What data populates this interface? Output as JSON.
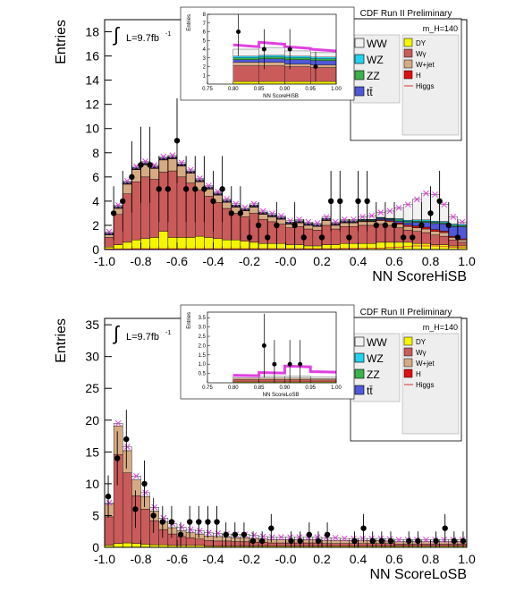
{
  "page": {
    "background": "#ffffff"
  },
  "colors": {
    "WW": "#f2f2f2",
    "WZ": "#22d3ee",
    "ZZ": "#3cb34a",
    "ttbar": "#4f58d6",
    "DY": "#f5f500",
    "Wgamma": "#c95b5b",
    "Wjet": "#d6ab84",
    "H": "#e01010",
    "Higgs": "#d83030",
    "uncertainty": "#e040e0",
    "data": "#000000"
  },
  "chart_data": [
    {
      "type": "bar",
      "title": "CDF Run II Preliminary",
      "mass_label": "m_H=140",
      "lumi": "L=9.7fb",
      "lumi_exp": "-1",
      "integral_symbol": "∫",
      "xlabel": "NN ScoreHiSB",
      "ylabel": "Entries",
      "xlim": [
        -1.0,
        1.0
      ],
      "ylim": [
        0,
        19
      ],
      "x_ticks": [
        "-1.0",
        "-0.8",
        "-0.6",
        "-0.4",
        "-0.2",
        "-0.0",
        "0.2",
        "0.4",
        "0.6",
        "0.8",
        "1.0"
      ],
      "y_ticks": [
        "0",
        "2",
        "4",
        "6",
        "8",
        "10",
        "12",
        "14",
        "16",
        "18"
      ],
      "bins": 40,
      "stack_order": [
        "DY",
        "Wgamma",
        "Wjet",
        "H",
        "ttbar",
        "ZZ",
        "WZ",
        "WW"
      ],
      "stack": {
        "DY": [
          0.2,
          0.4,
          0.6,
          0.8,
          0.9,
          1.0,
          1.5,
          1.0,
          1.0,
          1.0,
          1.1,
          1.0,
          0.9,
          0.8,
          0.8,
          0.7,
          0.6,
          0.5,
          0.5,
          0.5,
          0.4,
          0.4,
          0.3,
          0.3,
          0.4,
          0.4,
          0.5,
          0.5,
          0.5,
          0.5,
          0.6,
          0.6,
          0.6,
          0.6,
          0.5,
          0.5,
          0.4,
          0.4,
          0.3,
          0.3
        ],
        "Wgamma": [
          0.8,
          2.5,
          4.0,
          4.8,
          5.1,
          4.8,
          4.9,
          5.5,
          5.0,
          4.5,
          3.8,
          3.4,
          3.0,
          2.6,
          2.2,
          2.0,
          2.4,
          2.0,
          1.8,
          1.6,
          1.4,
          1.5,
          1.4,
          1.3,
          1.6,
          1.3,
          1.4,
          1.4,
          1.5,
          1.5,
          1.5,
          1.4,
          1.2,
          1.0,
          1.0,
          0.9,
          0.8,
          0.7,
          0.5,
          0.3
        ],
        "Wjet": [
          0.2,
          0.5,
          0.8,
          1.0,
          1.0,
          0.9,
          1.0,
          1.0,
          0.9,
          0.8,
          0.7,
          0.6,
          0.6,
          0.5,
          0.5,
          0.5,
          0.5,
          0.4,
          0.4,
          0.4,
          0.3,
          0.3,
          0.3,
          0.3,
          0.4,
          0.3,
          0.3,
          0.3,
          0.3,
          0.3,
          0.3,
          0.3,
          0.3,
          0.3,
          0.3,
          0.3,
          0.3,
          0.3,
          0.2,
          0.2
        ],
        "H": [
          0.02,
          0.02,
          0.02,
          0.03,
          0.03,
          0.03,
          0.03,
          0.03,
          0.03,
          0.03,
          0.03,
          0.03,
          0.03,
          0.03,
          0.03,
          0.03,
          0.03,
          0.03,
          0.03,
          0.03,
          0.03,
          0.03,
          0.03,
          0.03,
          0.03,
          0.03,
          0.04,
          0.04,
          0.05,
          0.05,
          0.06,
          0.08,
          0.1,
          0.12,
          0.15,
          0.15,
          0.15,
          0.12,
          0.1,
          0.08
        ],
        "ttbar": [
          0.05,
          0.05,
          0.05,
          0.05,
          0.05,
          0.05,
          0.05,
          0.05,
          0.05,
          0.05,
          0.05,
          0.05,
          0.05,
          0.05,
          0.05,
          0.05,
          0.05,
          0.05,
          0.05,
          0.05,
          0.05,
          0.05,
          0.05,
          0.05,
          0.05,
          0.05,
          0.05,
          0.05,
          0.05,
          0.05,
          0.1,
          0.1,
          0.15,
          0.2,
          0.3,
          0.4,
          0.5,
          0.6,
          0.8,
          1.0
        ],
        "ZZ": [
          0.05,
          0.05,
          0.05,
          0.05,
          0.05,
          0.05,
          0.05,
          0.05,
          0.05,
          0.05,
          0.05,
          0.05,
          0.05,
          0.05,
          0.05,
          0.05,
          0.05,
          0.05,
          0.05,
          0.05,
          0.05,
          0.05,
          0.05,
          0.05,
          0.05,
          0.05,
          0.05,
          0.05,
          0.05,
          0.05,
          0.05,
          0.05,
          0.1,
          0.1,
          0.1,
          0.1,
          0.1,
          0.1,
          0.1,
          0.1
        ],
        "WZ": [
          0.05,
          0.05,
          0.05,
          0.05,
          0.05,
          0.05,
          0.05,
          0.05,
          0.05,
          0.05,
          0.05,
          0.05,
          0.05,
          0.05,
          0.05,
          0.05,
          0.05,
          0.05,
          0.05,
          0.05,
          0.05,
          0.05,
          0.05,
          0.05,
          0.05,
          0.05,
          0.05,
          0.05,
          0.05,
          0.05,
          0.05,
          0.05,
          0.1,
          0.1,
          0.1,
          0.1,
          0.1,
          0.1,
          0.1,
          0.1
        ],
        "WW": [
          0.1,
          0.1,
          0.1,
          0.1,
          0.1,
          0.1,
          0.1,
          0.1,
          0.1,
          0.1,
          0.1,
          0.1,
          0.1,
          0.1,
          0.1,
          0.1,
          0.1,
          0.1,
          0.1,
          0.1,
          0.1,
          0.1,
          0.1,
          0.1,
          0.1,
          0.1,
          0.1,
          0.1,
          0.2,
          0.3,
          0.4,
          0.6,
          0.9,
          1.3,
          1.7,
          2.2,
          2.2,
          1.4,
          0.6,
          0.2
        ]
      },
      "data": {
        "x": [
          -0.95,
          -0.9,
          -0.85,
          -0.8,
          -0.75,
          -0.7,
          -0.65,
          -0.6,
          -0.55,
          -0.5,
          -0.45,
          -0.4,
          -0.35,
          -0.3,
          -0.25,
          -0.2,
          -0.15,
          -0.1,
          -0.05,
          0.05,
          0.1,
          0.2,
          0.25,
          0.3,
          0.35,
          0.4,
          0.45,
          0.5,
          0.55,
          0.6,
          0.65,
          0.7,
          0.75,
          0.8,
          0.85,
          0.9,
          0.95
        ],
        "y": [
          3,
          4,
          6,
          7,
          7,
          5,
          5,
          9,
          5,
          5,
          5,
          4,
          5,
          3,
          3,
          1,
          2,
          1,
          2,
          2,
          1,
          1,
          4,
          4,
          1,
          4,
          4,
          2,
          2,
          2,
          1,
          1,
          2,
          3,
          4,
          2,
          1
        ]
      },
      "inset": {
        "xlabel": "NN ScoreHiSB",
        "ylabel": "Entries",
        "xlim": [
          0.75,
          1.0
        ],
        "ylim": [
          0,
          8
        ],
        "x_ticks": [
          "0.75",
          "0.80",
          "0.85",
          "0.90",
          "0.95",
          "1.00"
        ],
        "y_ticks": [
          "1",
          "2",
          "3",
          "4",
          "5",
          "6",
          "7",
          "8"
        ],
        "bin_edges": [
          0.8,
          0.85,
          0.9,
          0.95,
          1.0
        ],
        "stack": {
          "DY": [
            0.3,
            0.3,
            0.3,
            0.3
          ],
          "Wgamma": [
            1.8,
            1.8,
            1.7,
            1.6
          ],
          "Wjet": [
            0.4,
            0.4,
            0.3,
            0.3
          ],
          "ttbar": [
            0.3,
            0.4,
            0.5,
            0.5
          ],
          "ZZ": [
            0.2,
            0.2,
            0.2,
            0.2
          ],
          "WZ": [
            0.2,
            0.2,
            0.2,
            0.2
          ],
          "WW": [
            0.8,
            0.9,
            0.6,
            0.5
          ]
        },
        "signal_band": [
          4.5,
          4.8,
          4.3,
          4.0
        ],
        "data": {
          "x": [
            0.81,
            0.86,
            0.91,
            0.96
          ],
          "y": [
            6,
            4,
            4,
            2
          ]
        }
      }
    },
    {
      "type": "bar",
      "title": "CDF Run II Preliminary",
      "mass_label": "m_H=140",
      "lumi": "L=9.7fb",
      "lumi_exp": "-1",
      "integral_symbol": "∫",
      "xlabel": "NN ScoreLoSB",
      "ylabel": "Entries",
      "xlim": [
        -1.0,
        1.0
      ],
      "ylim": [
        0,
        36
      ],
      "x_ticks": [
        "-1.0",
        "-0.8",
        "-0.6",
        "-0.4",
        "-0.2",
        "-0.0",
        "0.2",
        "0.4",
        "0.6",
        "0.8",
        "1.0"
      ],
      "y_ticks": [
        "0",
        "5",
        "10",
        "15",
        "20",
        "25",
        "30",
        "35"
      ],
      "bins": 40,
      "stack_order": [
        "DY",
        "Wgamma",
        "Wjet",
        "H",
        "ttbar",
        "ZZ",
        "WZ",
        "WW"
      ],
      "stack": {
        "DY": [
          0.3,
          0.6,
          0.7,
          0.6,
          0.5,
          0.4,
          0.4,
          0.3,
          0.3,
          0.3,
          0.3,
          0.2,
          0.2,
          0.2,
          0.2,
          0.2,
          0.2,
          0.2,
          0.2,
          0.2,
          0.2,
          0.2,
          0.2,
          0.2,
          0.2,
          0.2,
          0.2,
          0.2,
          0.2,
          0.2,
          0.2,
          0.2,
          0.2,
          0.2,
          0.2,
          0.2,
          0.2,
          0.2,
          0.2,
          0.2
        ],
        "Wgamma": [
          4.5,
          14.0,
          11.0,
          7.5,
          5.5,
          3.8,
          2.4,
          1.8,
          1.4,
          1.2,
          1.0,
          0.9,
          0.8,
          0.8,
          0.7,
          0.7,
          0.6,
          0.6,
          0.5,
          0.5,
          0.5,
          0.5,
          0.5,
          0.5,
          0.4,
          0.4,
          0.4,
          0.4,
          0.4,
          0.4,
          0.4,
          0.4,
          0.3,
          0.3,
          0.3,
          0.3,
          0.3,
          0.3,
          0.3,
          0.3
        ],
        "Wjet": [
          2.0,
          4.5,
          3.5,
          2.5,
          2.0,
          1.5,
          1.2,
          1.0,
          0.9,
          0.8,
          0.8,
          0.7,
          0.7,
          0.6,
          0.6,
          0.6,
          0.6,
          0.5,
          0.5,
          0.5,
          0.5,
          0.5,
          0.5,
          0.5,
          0.5,
          0.5,
          0.5,
          0.5,
          0.5,
          0.5,
          0.5,
          0.4,
          0.4,
          0.4,
          0.4,
          0.4,
          0.4,
          0.4,
          0.4,
          0.4
        ],
        "H": [
          0,
          0,
          0,
          0,
          0,
          0,
          0,
          0,
          0,
          0,
          0,
          0,
          0,
          0,
          0,
          0,
          0,
          0,
          0,
          0,
          0,
          0,
          0,
          0,
          0,
          0,
          0,
          0,
          0,
          0,
          0,
          0,
          0,
          0,
          0,
          0,
          0,
          0,
          0,
          0
        ],
        "ttbar": [
          0,
          0,
          0,
          0,
          0,
          0,
          0,
          0,
          0,
          0,
          0,
          0,
          0,
          0,
          0,
          0,
          0,
          0,
          0,
          0,
          0,
          0,
          0,
          0,
          0,
          0,
          0,
          0,
          0,
          0,
          0,
          0,
          0,
          0,
          0,
          0,
          0,
          0,
          0,
          0
        ],
        "ZZ": [
          0,
          0,
          0,
          0,
          0,
          0,
          0,
          0,
          0,
          0,
          0,
          0,
          0,
          0,
          0,
          0,
          0,
          0,
          0,
          0,
          0,
          0,
          0,
          0,
          0,
          0,
          0,
          0,
          0,
          0,
          0,
          0,
          0,
          0,
          0,
          0,
          0,
          0,
          0,
          0
        ],
        "WZ": [
          0,
          0,
          0,
          0,
          0,
          0,
          0,
          0,
          0,
          0,
          0,
          0,
          0,
          0,
          0,
          0,
          0,
          0,
          0,
          0,
          0,
          0,
          0,
          0,
          0,
          0,
          0,
          0,
          0,
          0,
          0,
          0,
          0,
          0,
          0,
          0,
          0,
          0,
          0,
          0
        ],
        "WW": [
          0.2,
          0.4,
          0.6,
          0.6,
          0.6,
          0.6,
          0.6,
          0.6,
          0.6,
          0.5,
          0.5,
          0.5,
          0.5,
          0.5,
          0.5,
          0.5,
          0.5,
          0.4,
          0.4,
          0.4,
          0.4,
          0.4,
          0.4,
          0.4,
          0.4,
          0.4,
          0.3,
          0.3,
          0.3,
          0.3,
          0.3,
          0.3,
          0.3,
          0.3,
          0.3,
          0.3,
          0.3,
          0.3,
          0.3,
          0.3
        ]
      },
      "data": {
        "x": [
          -0.98,
          -0.93,
          -0.88,
          -0.83,
          -0.78,
          -0.73,
          -0.68,
          -0.63,
          -0.58,
          -0.53,
          -0.48,
          -0.43,
          -0.38,
          -0.33,
          -0.28,
          -0.23,
          -0.18,
          -0.13,
          -0.08,
          0.03,
          0.08,
          0.13,
          0.18,
          0.23,
          0.38,
          0.43,
          0.48,
          0.53,
          0.58,
          0.68,
          0.73,
          0.83,
          0.88,
          0.93,
          0.98
        ],
        "y": [
          8,
          14,
          17,
          6,
          10,
          5,
          4,
          4,
          2,
          4,
          4,
          4,
          4,
          2,
          2,
          2,
          1,
          1,
          3,
          1,
          1,
          2,
          1,
          2,
          1,
          3,
          1,
          1,
          1,
          1,
          1,
          1,
          3,
          1,
          1
        ]
      },
      "inset": {
        "xlabel": "NN ScoreLoSB",
        "ylabel": "Entries",
        "xlim": [
          0.75,
          1.0
        ],
        "ylim": [
          0,
          3.8
        ],
        "x_ticks": [
          "0.75",
          "0.80",
          "0.85",
          "0.90",
          "0.95",
          "1.00"
        ],
        "y_ticks": [
          "0.5",
          "1.0",
          "1.5",
          "2.0",
          "2.5",
          "3.0",
          "3.5"
        ],
        "bin_edges": [
          0.8,
          0.85,
          0.9,
          0.95,
          1.0
        ],
        "stack": {
          "DY": [
            0.05,
            0.05,
            0.05,
            0.05
          ],
          "Wgamma": [
            0.12,
            0.12,
            0.12,
            0.1
          ],
          "Wjet": [
            0.08,
            0.08,
            0.08,
            0.07
          ],
          "ttbar": [
            0,
            0,
            0,
            0
          ],
          "ZZ": [
            0,
            0,
            0,
            0
          ],
          "WZ": [
            0,
            0,
            0,
            0
          ],
          "WW": [
            0.1,
            0.1,
            0.1,
            0.1
          ]
        },
        "signal_band": [
          0.4,
          0.55,
          0.9,
          0.6
        ],
        "data": {
          "x": [
            0.86,
            0.88,
            0.91,
            0.93
          ],
          "y": [
            2,
            1,
            1,
            1
          ]
        }
      }
    }
  ],
  "legend_entries": [
    {
      "key": "WW",
      "label": "WW",
      "type": "box"
    },
    {
      "key": "WZ",
      "label": "WZ",
      "type": "box"
    },
    {
      "key": "ZZ",
      "label": "ZZ",
      "type": "box"
    },
    {
      "key": "ttbar",
      "label": "tt̄",
      "type": "box"
    },
    {
      "key": "DY",
      "label": "DY",
      "type": "box"
    },
    {
      "key": "Wgamma",
      "label": "Wγ",
      "type": "box"
    },
    {
      "key": "Wjet",
      "label": "W+jet",
      "type": "box"
    },
    {
      "key": "H",
      "label": "H",
      "type": "box"
    },
    {
      "key": "Higgs",
      "label": "Higgs",
      "type": "line"
    }
  ]
}
